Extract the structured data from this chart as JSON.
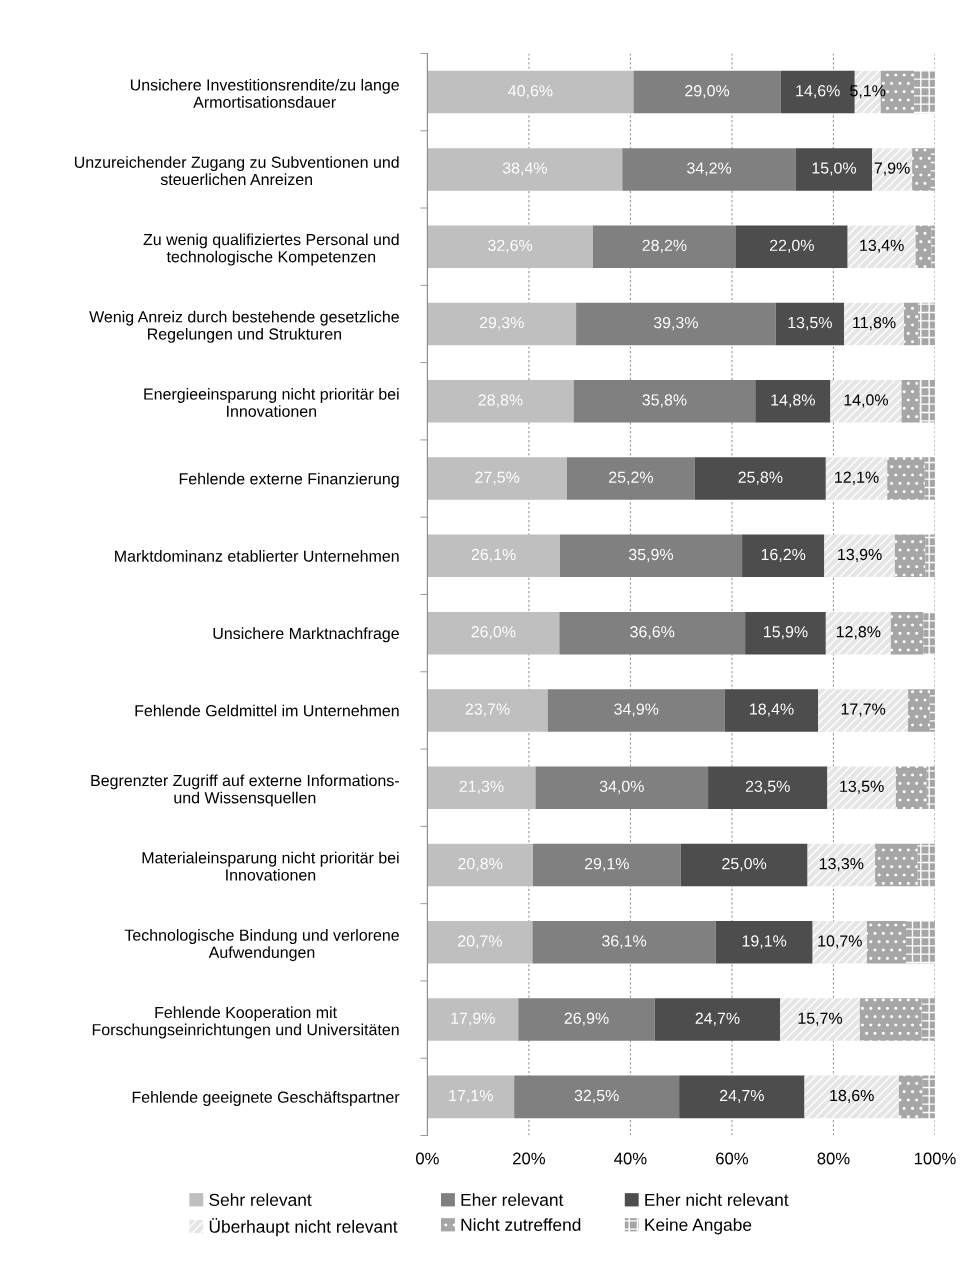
{
  "chart_data": {
    "type": "bar",
    "orientation": "horizontal",
    "stacked": true,
    "categories": [
      "Unsichere Investitionsrendite/zu lange\nArmortisationsdauer",
      "Unzureichender Zugang zu Subventionen und\nsteuerlichen Anreizen",
      "Zu wenig qualifiziertes Personal und\ntechnologische Kompetenzen",
      "Wenig Anreiz durch bestehende gesetzliche\nRegelungen und Strukturen",
      "Energieeinsparung nicht prioritär bei\nInnovationen",
      "Fehlende externe Finanzierung",
      "Marktdominanz etablierter Unternehmen",
      "Unsichere Marktnachfrage",
      "Fehlende Geldmittel im Unternehmen",
      "Begrenzter Zugriff auf externe Informations-\nund Wissensquellen",
      "Materialeinsparung nicht prioritär bei\nInnovationen",
      "Technologische Bindung und verlorene\nAufwendungen",
      "Fehlende Kooperation mit\nForschungseinrichtungen und Universitäten",
      "Fehlende geeignete Geschäftspartner"
    ],
    "series": [
      {
        "name": "Sehr relevant",
        "color": "#bfbfbf",
        "values": [
          40.6,
          38.4,
          32.6,
          29.3,
          28.8,
          27.5,
          26.1,
          26.0,
          23.7,
          21.3,
          20.8,
          20.7,
          17.9,
          17.1
        ],
        "value_labels": [
          "40,6%",
          "38,4%",
          "32,6%",
          "29,3%",
          "28,8%",
          "27,5%",
          "26,1%",
          "26,0%",
          "23,7%",
          "21,3%",
          "20,8%",
          "20,7%",
          "17,9%",
          "17,1%"
        ]
      },
      {
        "name": "Eher relevant",
        "color": "#808080",
        "values": [
          29.0,
          34.2,
          28.2,
          39.3,
          35.8,
          25.2,
          35.9,
          36.6,
          34.9,
          34.0,
          29.1,
          36.1,
          26.9,
          32.5
        ],
        "value_labels": [
          "29,0%",
          "34,2%",
          "28,2%",
          "39,3%",
          "35,8%",
          "25,2%",
          "35,9%",
          "36,6%",
          "34,9%",
          "34,0%",
          "29,1%",
          "36,1%",
          "26,9%",
          "32,5%"
        ]
      },
      {
        "name": "Eher nicht relevant",
        "color": "#4d4d4d",
        "values": [
          14.6,
          15.0,
          22.0,
          13.5,
          14.8,
          25.8,
          16.2,
          15.9,
          18.4,
          23.5,
          25.0,
          19.1,
          24.7,
          24.7
        ],
        "value_labels": [
          "14,6%",
          "15,0%",
          "22,0%",
          "13,5%",
          "14,8%",
          "25,8%",
          "16,2%",
          "15,9%",
          "18,4%",
          "23,5%",
          "25,0%",
          "19,1%",
          "24,7%",
          "24,7%"
        ]
      },
      {
        "name": "Überhaupt nicht relevant",
        "color": "#e6e6e6",
        "values": [
          5.1,
          7.9,
          13.4,
          11.8,
          14.0,
          12.1,
          13.9,
          12.8,
          17.7,
          13.5,
          13.3,
          10.7,
          15.7,
          18.6
        ],
        "value_labels": [
          "5,1%",
          "7,9%",
          "13,4%",
          "11,8%",
          "14,0%",
          "12,1%",
          "13,9%",
          "12,8%",
          "17,7%",
          "13,5%",
          "13,3%",
          "10,7%",
          "15,7%",
          "18,6%"
        ]
      },
      {
        "name": "Nicht zutreffend",
        "color": "#a6a6a6",
        "values": [
          6.6,
          3.7,
          3.1,
          2.8,
          3.6,
          7.4,
          6.0,
          6.4,
          4.3,
          6.1,
          8.4,
          7.7,
          12.2,
          4.7
        ]
      },
      {
        "name": "Keine Angabe",
        "color": "#a6a6a6",
        "values": [
          4.1,
          0.8,
          0.7,
          3.3,
          3.0,
          2.0,
          1.9,
          2.3,
          1.0,
          1.6,
          3.4,
          5.7,
          2.6,
          2.4
        ]
      }
    ],
    "xlim": [
      0,
      100
    ],
    "xticks": [
      {
        "value": 0,
        "label": "0%"
      },
      {
        "value": 20,
        "label": "20%"
      },
      {
        "value": 40,
        "label": "40%"
      },
      {
        "value": 60,
        "label": "60%"
      },
      {
        "value": 80,
        "label": "80%"
      },
      {
        "value": 100,
        "label": "100%"
      }
    ],
    "grid": "x",
    "legend": "bottom"
  }
}
